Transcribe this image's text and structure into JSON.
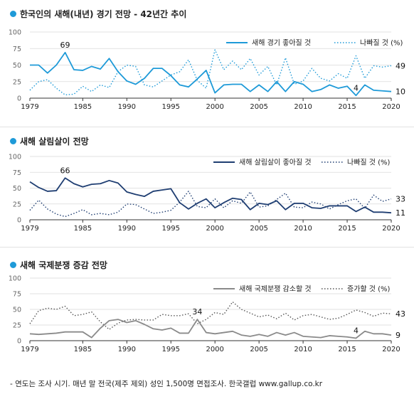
{
  "footnote": "- 연도는 조사 시기. 매년 말 전국(제주 제외) 성인 1,500명 면접조사. 한국갤럽 www.gallup.co.kr",
  "colors": {
    "dot": "#1e9ad8",
    "grid": "#d9d9d9",
    "axis": "#333333",
    "tick_text": "#666666"
  },
  "chart_data": [
    {
      "type": "line",
      "title": "한국인의 새해(내년) 경기 전망 - 42년간 추이",
      "x_ticks": [
        1979,
        1985,
        1990,
        1995,
        2000,
        2005,
        2010,
        2015,
        2020
      ],
      "ylim": [
        0,
        100
      ],
      "y_ticks": [
        0,
        25,
        50,
        75,
        100
      ],
      "legend_position": "top-right",
      "series": [
        {
          "name": "새해 경기 좋아질 것",
          "color": "#1e9ad8",
          "style": "solid",
          "x": [
            1979,
            1980,
            1981,
            1982,
            1983,
            1984,
            1985,
            1986,
            1987,
            1988,
            1989,
            1990,
            1991,
            1992,
            1993,
            1994,
            1995,
            1996,
            1997,
            1998,
            1999,
            2000,
            2001,
            2002,
            2003,
            2004,
            2005,
            2006,
            2007,
            2008,
            2009,
            2010,
            2011,
            2012,
            2013,
            2014,
            2015,
            2016,
            2017,
            2018,
            2019,
            2020
          ],
          "values": [
            50,
            50,
            38,
            50,
            69,
            43,
            42,
            48,
            44,
            60,
            40,
            26,
            21,
            30,
            45,
            45,
            34,
            20,
            17,
            29,
            42,
            8,
            20,
            21,
            21,
            10,
            20,
            10,
            25,
            10,
            25,
            21,
            10,
            13,
            20,
            15,
            18,
            4,
            20,
            12,
            11,
            10
          ]
        },
        {
          "name": "나빠질 것 (%)",
          "color": "#1e9ad8",
          "style": "dotted",
          "x": [
            1979,
            1980,
            1981,
            1982,
            1983,
            1984,
            1985,
            1986,
            1987,
            1988,
            1989,
            1990,
            1991,
            1992,
            1993,
            1994,
            1995,
            1996,
            1997,
            1998,
            1999,
            2000,
            2001,
            2002,
            2003,
            2004,
            2005,
            2006,
            2007,
            2008,
            2009,
            2010,
            2011,
            2012,
            2013,
            2014,
            2015,
            2016,
            2017,
            2018,
            2019,
            2020
          ],
          "values": [
            12,
            25,
            28,
            15,
            5,
            6,
            18,
            10,
            20,
            16,
            40,
            50,
            48,
            20,
            17,
            26,
            35,
            40,
            58,
            27,
            15,
            73,
            43,
            56,
            43,
            60,
            35,
            48,
            20,
            61,
            21,
            26,
            45,
            30,
            26,
            37,
            30,
            64,
            30,
            49,
            47,
            49
          ]
        }
      ],
      "annotations": [
        {
          "x": 1983,
          "y": 69,
          "text": "69",
          "series": 0,
          "position": "above"
        },
        {
          "x": 2016,
          "y": 4,
          "text": "4",
          "series": 0,
          "position": "above"
        },
        {
          "x": 2020,
          "y": 49,
          "text": "49",
          "series": 1,
          "position": "right"
        },
        {
          "x": 2020,
          "y": 10,
          "text": "10",
          "series": 0,
          "position": "right"
        }
      ]
    },
    {
      "type": "line",
      "title": "새해 살림살이 전망",
      "x_ticks": [
        1979,
        1985,
        1990,
        1995,
        2000,
        2005,
        2010,
        2015,
        2020
      ],
      "ylim": [
        0,
        100
      ],
      "y_ticks": [
        0,
        25,
        50,
        75,
        100
      ],
      "legend_position": "top-right",
      "series": [
        {
          "name": "새해 살림살이 좋아질 것",
          "color": "#1f3e72",
          "style": "solid",
          "x": [
            1979,
            1980,
            1981,
            1982,
            1983,
            1984,
            1985,
            1986,
            1987,
            1988,
            1989,
            1990,
            1991,
            1992,
            1993,
            1994,
            1995,
            1996,
            1997,
            1998,
            1999,
            2000,
            2001,
            2002,
            2003,
            2004,
            2005,
            2006,
            2007,
            2008,
            2009,
            2010,
            2011,
            2012,
            2013,
            2014,
            2015,
            2016,
            2017,
            2018,
            2019,
            2020
          ],
          "values": [
            60,
            51,
            45,
            46,
            66,
            57,
            52,
            56,
            57,
            62,
            58,
            44,
            40,
            37,
            45,
            47,
            49,
            27,
            17,
            26,
            33,
            19,
            27,
            34,
            32,
            16,
            26,
            24,
            30,
            16,
            26,
            26,
            19,
            18,
            22,
            22,
            22,
            13,
            20,
            12,
            12,
            11
          ]
        },
        {
          "name": "나빠질 것 (%)",
          "color": "#1f3e72",
          "style": "dotted",
          "x": [
            1979,
            1980,
            1981,
            1982,
            1983,
            1984,
            1985,
            1986,
            1987,
            1988,
            1989,
            1990,
            1991,
            1992,
            1993,
            1994,
            1995,
            1996,
            1997,
            1998,
            1999,
            2000,
            2001,
            2002,
            2003,
            2004,
            2005,
            2006,
            2007,
            2008,
            2009,
            2010,
            2011,
            2012,
            2013,
            2014,
            2015,
            2016,
            2017,
            2018,
            2019,
            2020
          ],
          "values": [
            15,
            31,
            17,
            9,
            5,
            10,
            16,
            8,
            10,
            8,
            12,
            25,
            24,
            17,
            10,
            12,
            15,
            28,
            45,
            21,
            19,
            33,
            19,
            30,
            26,
            44,
            20,
            22,
            32,
            42,
            20,
            19,
            28,
            25,
            17,
            24,
            30,
            33,
            18,
            39,
            29,
            33
          ]
        }
      ],
      "annotations": [
        {
          "x": 1983,
          "y": 66,
          "text": "66",
          "series": 0,
          "position": "above"
        },
        {
          "x": 2020,
          "y": 33,
          "text": "33",
          "series": 1,
          "position": "right"
        },
        {
          "x": 2020,
          "y": 11,
          "text": "11",
          "series": 0,
          "position": "right"
        }
      ]
    },
    {
      "type": "line",
      "title": "새해 국제분쟁 증감 전망",
      "x_ticks": [
        1979,
        1985,
        1990,
        1995,
        2000,
        2005,
        2010,
        2015,
        2020
      ],
      "ylim": [
        0,
        100
      ],
      "y_ticks": [
        0,
        25,
        50,
        75,
        100
      ],
      "legend_position": "top-right",
      "series": [
        {
          "name": "새해 국제분쟁 감소할 것",
          "color": "#8a8a8a",
          "style": "solid",
          "x": [
            1979,
            1980,
            1981,
            1982,
            1983,
            1984,
            1985,
            1986,
            1987,
            1988,
            1989,
            1990,
            1991,
            1992,
            1993,
            1994,
            1995,
            1996,
            1997,
            1998,
            1999,
            2000,
            2001,
            2002,
            2003,
            2004,
            2005,
            2006,
            2007,
            2008,
            2009,
            2010,
            2011,
            2012,
            2013,
            2014,
            2015,
            2016,
            2017,
            2018,
            2019,
            2020
          ],
          "values": [
            11,
            10,
            11,
            12,
            14,
            14,
            14,
            5,
            20,
            32,
            34,
            29,
            32,
            26,
            19,
            17,
            20,
            12,
            12,
            34,
            13,
            11,
            13,
            15,
            9,
            7,
            10,
            7,
            13,
            9,
            13,
            7,
            6,
            5,
            8,
            7,
            6,
            4,
            15,
            11,
            11,
            9
          ]
        },
        {
          "name": "증가할 것 (%)",
          "color": "#555555",
          "style": "dotted",
          "x": [
            1979,
            1980,
            1981,
            1982,
            1983,
            1984,
            1985,
            1986,
            1987,
            1988,
            1989,
            1990,
            1991,
            1992,
            1993,
            1994,
            1995,
            1996,
            1997,
            1998,
            1999,
            2000,
            2001,
            2002,
            2003,
            2004,
            2005,
            2006,
            2007,
            2008,
            2009,
            2010,
            2011,
            2012,
            2013,
            2014,
            2015,
            2016,
            2017,
            2018,
            2019,
            2020
          ],
          "values": [
            27,
            48,
            52,
            50,
            55,
            40,
            42,
            46,
            30,
            18,
            28,
            33,
            34,
            33,
            33,
            42,
            40,
            40,
            43,
            27,
            34,
            45,
            42,
            62,
            50,
            44,
            38,
            41,
            35,
            44,
            33,
            40,
            42,
            38,
            34,
            36,
            42,
            49,
            45,
            39,
            44,
            43
          ]
        }
      ],
      "annotations": [
        {
          "x": 1998,
          "y": 34,
          "text": "34",
          "series": 0,
          "position": "above"
        },
        {
          "x": 2016,
          "y": 4,
          "text": "4",
          "series": 0,
          "position": "above"
        },
        {
          "x": 2020,
          "y": 43,
          "text": "43",
          "series": 1,
          "position": "right"
        },
        {
          "x": 2020,
          "y": 9,
          "text": "9",
          "series": 0,
          "position": "right"
        }
      ]
    }
  ]
}
